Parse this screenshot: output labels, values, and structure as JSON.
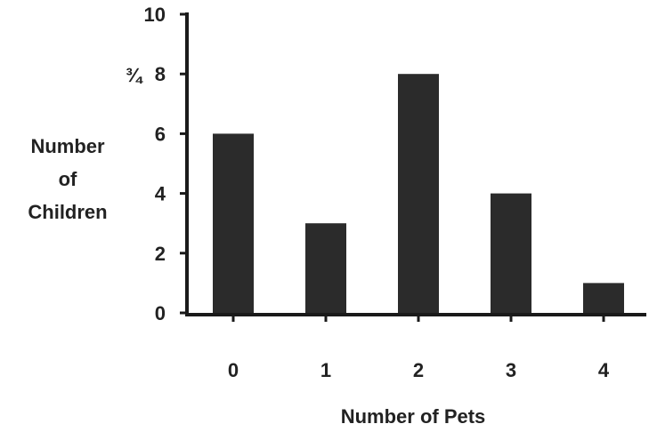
{
  "chart_data": {
    "type": "bar",
    "categories": [
      "0",
      "1",
      "2",
      "3",
      "4"
    ],
    "values": [
      6,
      3,
      8,
      4,
      1
    ],
    "xlabel": "Number of Pets",
    "ylabel_lines": [
      "Number",
      "of",
      "Children"
    ],
    "ylim": [
      0,
      10
    ],
    "yticks": [
      "0",
      "2",
      "4",
      "6",
      "8",
      "10"
    ],
    "stray_mark": "¾",
    "grid": false,
    "bar_color": "#2b2b2b"
  }
}
